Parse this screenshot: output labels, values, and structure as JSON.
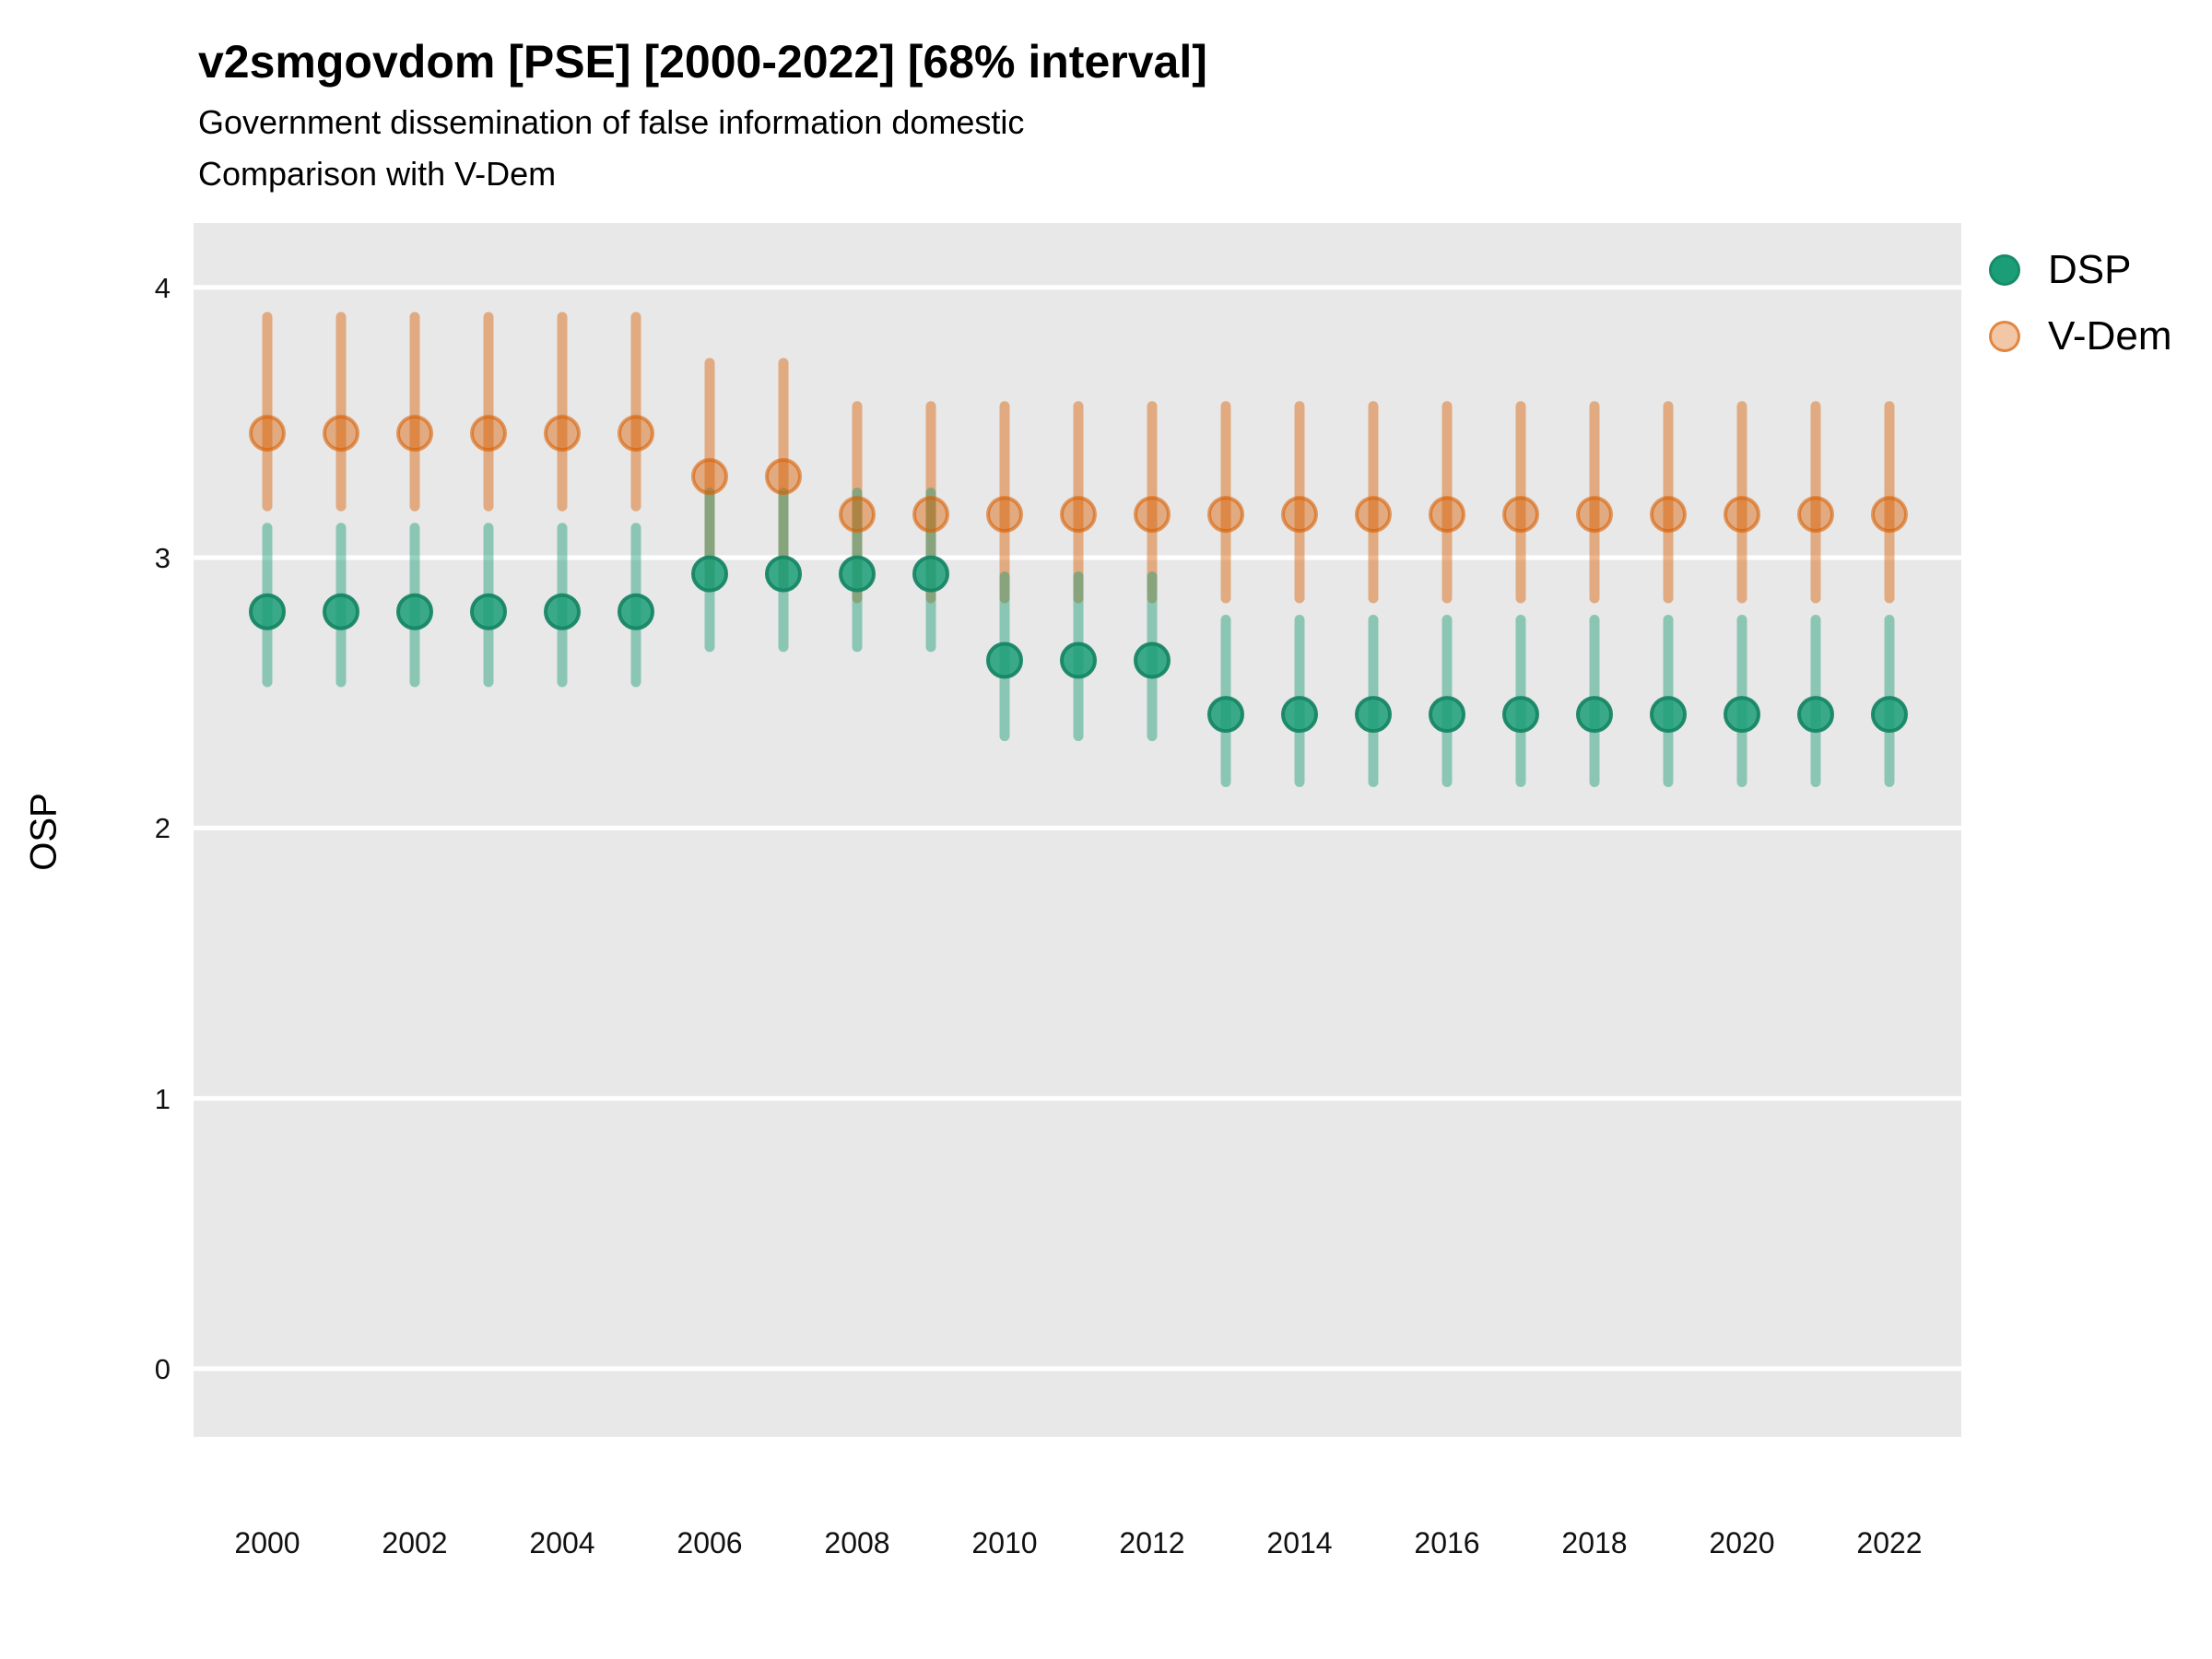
{
  "header": {
    "title": "v2smgovdom [PSE] [2000-2022] [68% interval]",
    "subtitle1": "Government dissemination of false information domestic",
    "subtitle2": "Comparison with V-Dem"
  },
  "axes": {
    "y_title": "OSP",
    "y_ticks": [
      4,
      3,
      2,
      1,
      0
    ],
    "x_ticks": [
      2000,
      2002,
      2004,
      2006,
      2008,
      2010,
      2012,
      2014,
      2016,
      2018,
      2020,
      2022
    ]
  },
  "legend": {
    "items": [
      {
        "label": "DSP",
        "fill": "rgba(27,158,119,1)",
        "stroke": "rgba(22,140,105,1)"
      },
      {
        "label": "V-Dem",
        "fill": "rgba(217,95,2,0.35)",
        "stroke": "rgba(217,95,2,0.62)"
      }
    ]
  },
  "colors": {
    "panel_background": "#e8e8e8",
    "gridline": "#ffffff",
    "dsp_green": "#1B9E77",
    "vdem_orange": "#D95F02"
  },
  "chart_data": {
    "type": "pointrange",
    "title": "v2smgovdom [PSE] [2000-2022] [68% interval]",
    "subtitle": [
      "Government dissemination of false information domestic",
      "Comparison with V-Dem"
    ],
    "interval": "68%",
    "xlabel": "",
    "ylabel": "OSP",
    "ylim": [
      -0.25,
      4.24
    ],
    "xlim": [
      1999,
      2023
    ],
    "yticks": [
      0,
      1,
      2,
      3,
      4
    ],
    "xticks": [
      2000,
      2002,
      2004,
      2006,
      2008,
      2010,
      2012,
      2014,
      2016,
      2018,
      2020,
      2022
    ],
    "grid": "major-y white lines on gray panel",
    "legend_position": "right",
    "x": [
      2000,
      2001,
      2002,
      2003,
      2004,
      2005,
      2006,
      2007,
      2008,
      2009,
      2010,
      2011,
      2012,
      2013,
      2014,
      2015,
      2016,
      2017,
      2018,
      2019,
      2020,
      2021,
      2022
    ],
    "series": [
      {
        "name": "DSP",
        "color": "#1B9E77",
        "line_rgba": "rgba(27,158,119,0.45)",
        "point_fill_rgba": "rgba(27,158,119,0.85)",
        "point_stroke_rgba": "rgba(23,134,101,0.95)",
        "est": [
          2.8,
          2.8,
          2.8,
          2.8,
          2.8,
          2.8,
          2.94,
          2.94,
          2.94,
          2.94,
          2.62,
          2.62,
          2.62,
          2.42,
          2.42,
          2.42,
          2.42,
          2.42,
          2.42,
          2.42,
          2.42,
          2.42,
          2.42
        ],
        "lo": [
          2.54,
          2.54,
          2.54,
          2.54,
          2.54,
          2.54,
          2.67,
          2.67,
          2.67,
          2.67,
          2.34,
          2.34,
          2.34,
          2.17,
          2.17,
          2.17,
          2.17,
          2.17,
          2.17,
          2.17,
          2.17,
          2.17,
          2.17
        ],
        "hi": [
          3.11,
          3.11,
          3.11,
          3.11,
          3.11,
          3.11,
          3.24,
          3.24,
          3.24,
          3.24,
          2.93,
          2.93,
          2.93,
          2.77,
          2.77,
          2.77,
          2.77,
          2.77,
          2.77,
          2.77,
          2.77,
          2.77,
          2.77
        ]
      },
      {
        "name": "V-Dem",
        "color": "#D95F02",
        "line_rgba": "rgba(217,95,2,0.45)",
        "point_fill_rgba": "rgba(217,95,2,0.45)",
        "point_stroke_rgba": "rgba(217,95,2,0.60)",
        "est": [
          3.46,
          3.46,
          3.46,
          3.46,
          3.46,
          3.46,
          3.3,
          3.3,
          3.16,
          3.16,
          3.16,
          3.16,
          3.16,
          3.16,
          3.16,
          3.16,
          3.16,
          3.16,
          3.16,
          3.16,
          3.16,
          3.16,
          3.16
        ],
        "lo": [
          3.19,
          3.19,
          3.19,
          3.19,
          3.19,
          3.19,
          2.9,
          2.9,
          2.85,
          2.85,
          2.85,
          2.85,
          2.85,
          2.85,
          2.85,
          2.85,
          2.85,
          2.85,
          2.85,
          2.85,
          2.85,
          2.85,
          2.85
        ],
        "hi": [
          3.89,
          3.89,
          3.89,
          3.89,
          3.89,
          3.89,
          3.72,
          3.72,
          3.56,
          3.56,
          3.56,
          3.56,
          3.56,
          3.56,
          3.56,
          3.56,
          3.56,
          3.56,
          3.56,
          3.56,
          3.56,
          3.56,
          3.56
        ]
      }
    ]
  }
}
